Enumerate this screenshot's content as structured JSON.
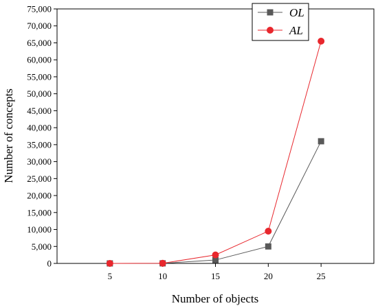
{
  "chart_data": {
    "type": "line",
    "xlabel": "Number of objects",
    "ylabel": "Number of concepts",
    "x": [
      5,
      10,
      15,
      20,
      25
    ],
    "xlim": [
      0,
      30
    ],
    "ylim": [
      0,
      75000
    ],
    "yticks": [
      0,
      5000,
      10000,
      15000,
      20000,
      25000,
      30000,
      35000,
      40000,
      45000,
      50000,
      55000,
      60000,
      65000,
      70000,
      75000
    ],
    "ytick_labels": [
      "0",
      "5,000",
      "10,000",
      "15,000",
      "20,000",
      "25,000",
      "30,000",
      "35,000",
      "40,000",
      "45,000",
      "50,000",
      "55,000",
      "60,000",
      "65,000",
      "70,000",
      "75,000"
    ],
    "xticks": [
      5,
      10,
      15,
      20,
      25
    ],
    "xtick_labels": [
      "5",
      "10",
      "15",
      "20",
      "25"
    ],
    "grid": false,
    "legend_position": "top-right",
    "series": [
      {
        "name": "OL",
        "values": [
          0,
          20,
          1000,
          5000,
          36000
        ],
        "color": "#595959",
        "marker": "square"
      },
      {
        "name": "AL",
        "values": [
          0,
          40,
          2500,
          9500,
          65500
        ],
        "color": "#e8272d",
        "marker": "circle"
      }
    ]
  }
}
